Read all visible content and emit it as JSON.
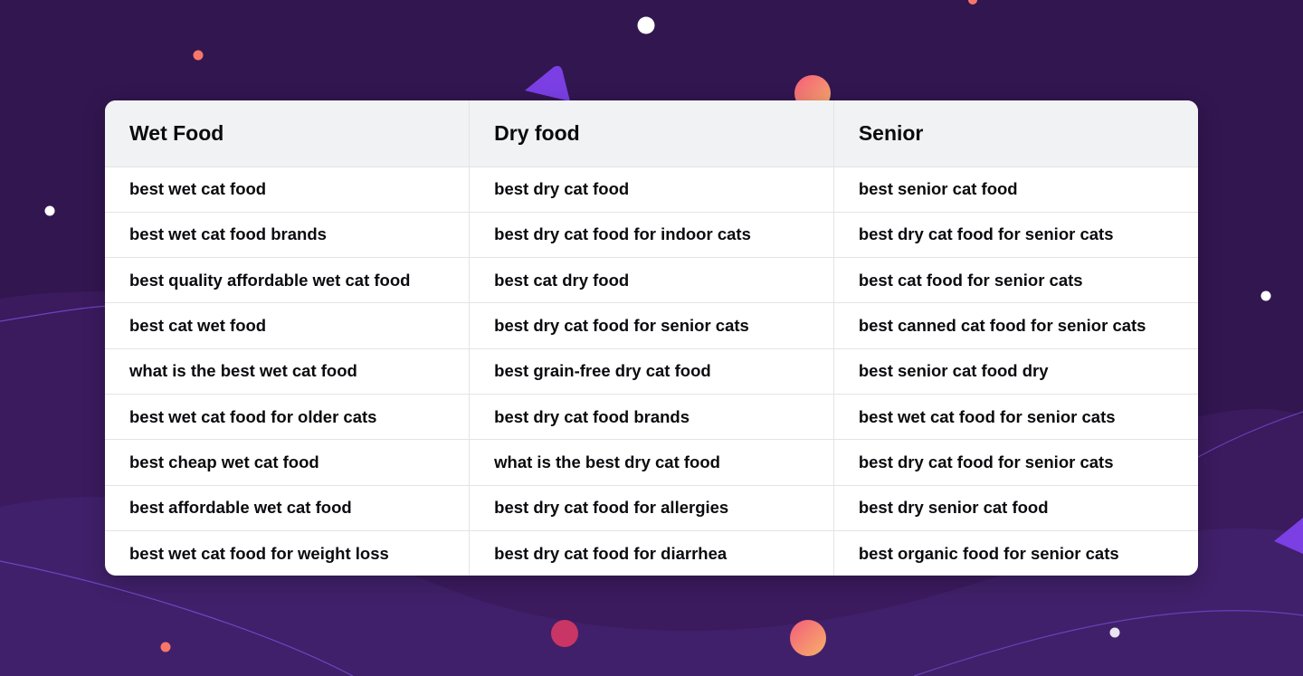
{
  "colors": {
    "background": "#321650",
    "card": "#ffffff",
    "header_bg": "#f1f2f4",
    "accent_purple": "#7b3fe4",
    "accent_orange": "#f7766a",
    "accent_pink": "#d23a6c",
    "text": "#0b0b0f"
  },
  "table": {
    "headers": [
      "Wet Food",
      "Dry food",
      "Senior"
    ],
    "rows": [
      [
        "best wet cat food",
        "best dry cat food",
        "best senior cat food"
      ],
      [
        "best wet cat food brands",
        "best dry cat food for indoor cats",
        "best dry cat food for senior cats"
      ],
      [
        "best quality affordable wet cat food",
        "best cat dry food",
        "best cat food for senior cats"
      ],
      [
        "best cat wet food",
        "best dry cat food for senior cats",
        "best canned cat food for senior cats"
      ],
      [
        "what is the best wet cat food",
        "best grain-free dry cat food",
        "best senior cat food dry"
      ],
      [
        "best wet cat food for older cats",
        "best dry cat food brands",
        "best wet cat food for senior cats"
      ],
      [
        "best cheap wet cat food",
        "what is the best dry cat food",
        "best dry cat food for senior cats"
      ],
      [
        "best affordable wet cat food",
        "best dry cat food for allergies",
        "best dry senior cat food"
      ],
      [
        "best wet cat food for weight loss",
        "best dry cat food for diarrhea",
        "best organic food for senior cats"
      ]
    ]
  }
}
